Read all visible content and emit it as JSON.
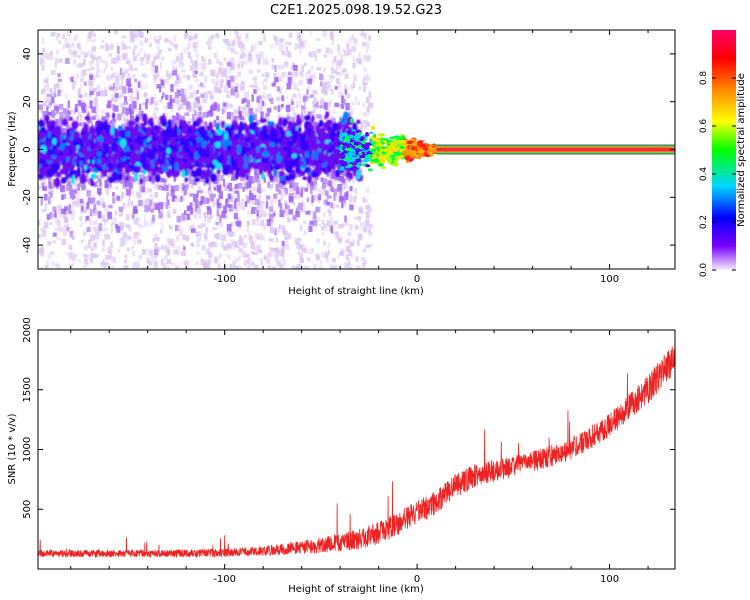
{
  "title": "C2E1.2025.098.19.52.G23",
  "chart_data": [
    {
      "type": "heatmap",
      "xlabel": "Height of straight line (km)",
      "ylabel": "Frequency (Hz)",
      "xlim": [
        -197,
        134
      ],
      "ylim": [
        -50,
        50
      ],
      "xticks": [
        -100,
        0,
        100
      ],
      "xtick_labels": [
        "-100",
        "0",
        "100"
      ],
      "yticks": [
        -40,
        -20,
        0,
        20,
        40
      ],
      "ytick_labels": [
        "-40",
        "-20",
        "0",
        "20",
        "40"
      ],
      "colorbar": {
        "label": "Normalized spectral amplitude",
        "range": [
          0,
          1
        ],
        "ticks": [
          0.0,
          0.2,
          0.4,
          0.6,
          0.8
        ],
        "tick_labels": [
          "0.0",
          "0.2",
          "0.4",
          "0.6",
          "0.8"
        ],
        "colormap": [
          "#f4ecfb",
          "#7a00ff",
          "#0000ff",
          "#00d8ff",
          "#00ff00",
          "#ffff00",
          "#ff8800",
          "#ff0000",
          "#ff0066"
        ]
      },
      "features": {
        "line_frequency_hz": 0,
        "broad_spread_region_km": [
          -197,
          -40
        ],
        "broad_spread_halfwidth_hz": 12,
        "convergence_region_km": [
          -40,
          15
        ],
        "saturated_line_region_km": [
          15,
          134
        ],
        "tone_color": "#ff2a3a"
      }
    },
    {
      "type": "line",
      "xlabel": "Height of straight line (km)",
      "ylabel": "SNR (10 * v/v)",
      "xlim": [
        -197,
        134
      ],
      "ylim": [
        0,
        2000
      ],
      "xticks": [
        -100,
        0,
        100
      ],
      "xtick_labels": [
        "-100",
        "0",
        "100"
      ],
      "yticks": [
        500,
        1000,
        1500,
        2000
      ],
      "ytick_labels": [
        "500",
        "1000",
        "1500",
        "2000"
      ],
      "color": "#ee2222",
      "x": [
        -197,
        -175,
        -150,
        -125,
        -100,
        -80,
        -60,
        -45,
        -30,
        -20,
        -10,
        0,
        10,
        20,
        30,
        40,
        50,
        60,
        70,
        80,
        90,
        100,
        110,
        120,
        130,
        134
      ],
      "y": [
        130,
        130,
        130,
        130,
        135,
        150,
        180,
        210,
        250,
        300,
        380,
        470,
        560,
        700,
        780,
        820,
        860,
        900,
        950,
        1000,
        1100,
        1200,
        1350,
        1500,
        1700,
        1750
      ],
      "noise_amplitude": [
        30,
        30,
        30,
        32,
        35,
        40,
        55,
        70,
        85,
        95,
        100,
        100,
        100,
        100,
        100,
        95,
        90,
        90,
        90,
        90,
        95,
        100,
        110,
        120,
        130,
        130
      ]
    }
  ]
}
